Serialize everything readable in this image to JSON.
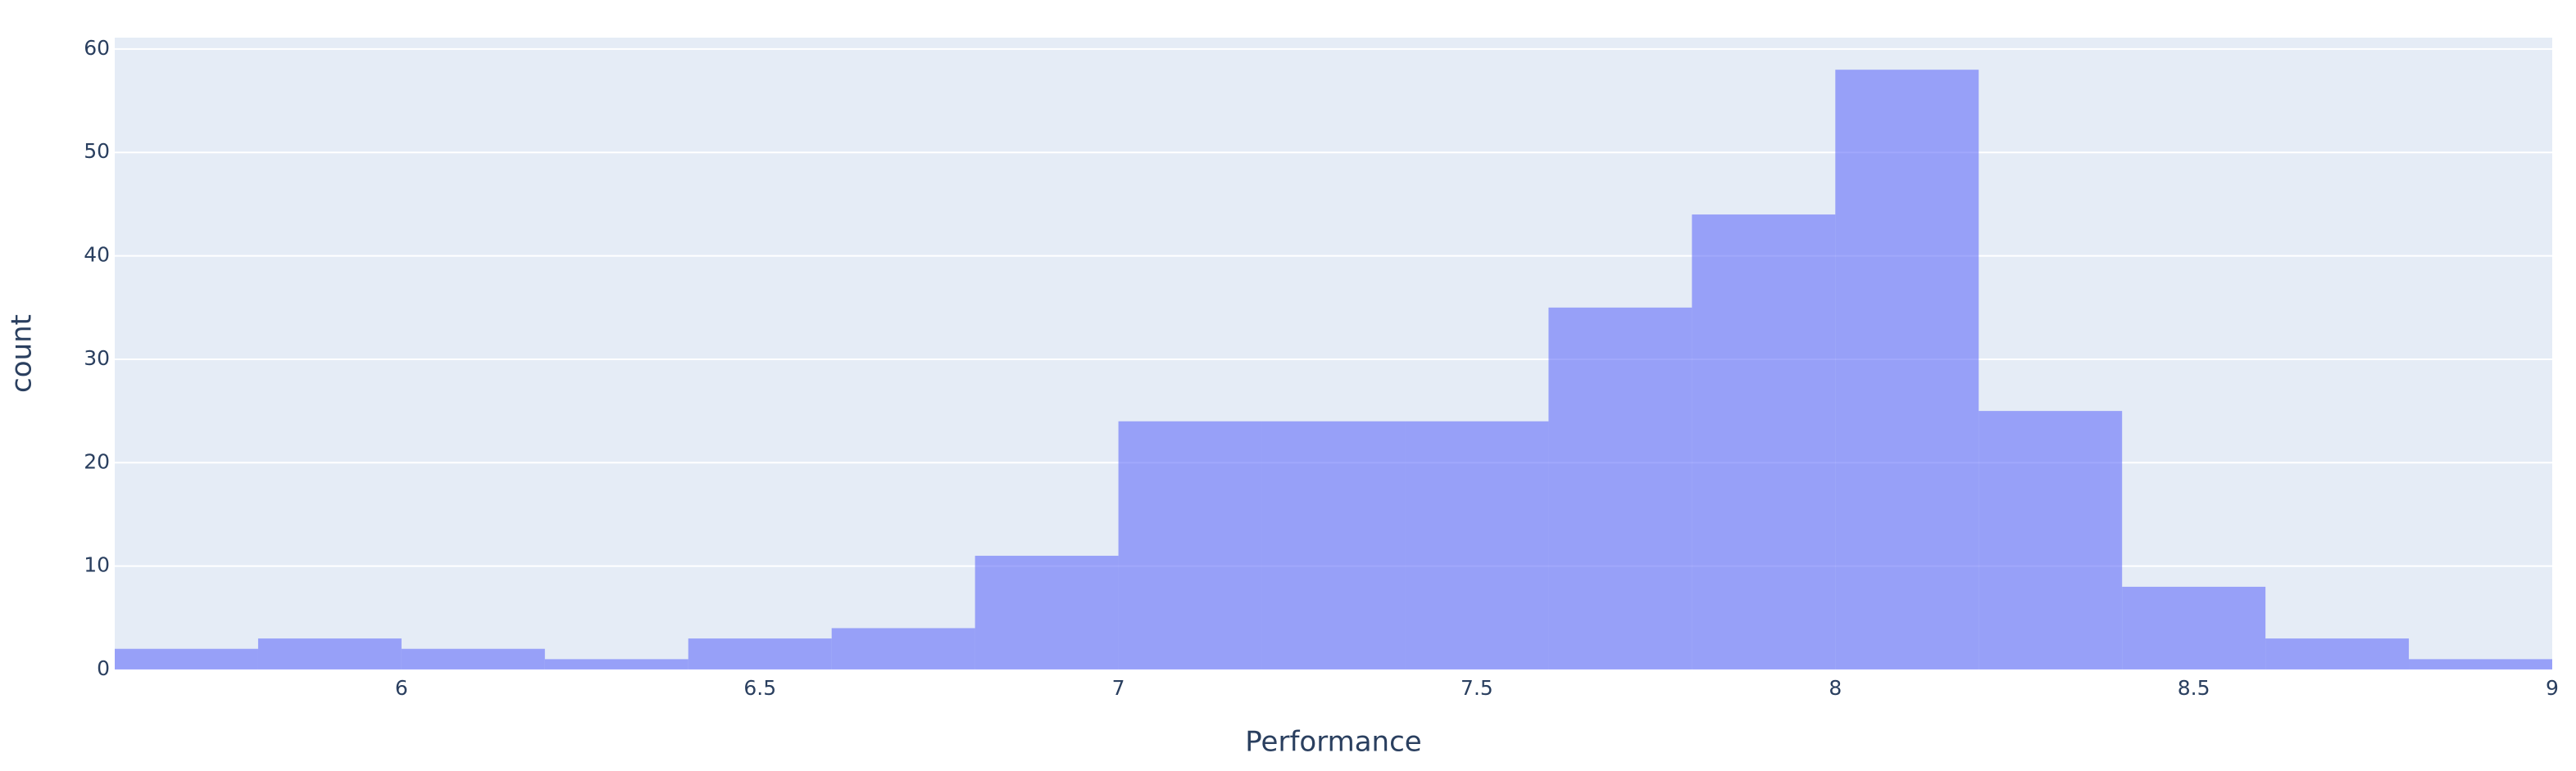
{
  "chart_data": {
    "type": "histogram",
    "x_label": "Performance",
    "y_label": "count",
    "bins": [
      5.6,
      5.8,
      6.0,
      6.2,
      6.4,
      6.6,
      6.8,
      7.0,
      7.2,
      7.4,
      7.6,
      7.8,
      8.0,
      8.2,
      8.4,
      8.6,
      8.8,
      9.0
    ],
    "counts": [
      2,
      3,
      2,
      1,
      3,
      4,
      11,
      24,
      24,
      24,
      35,
      44,
      58,
      25,
      8,
      3,
      1
    ],
    "color": "#636efa",
    "opacity": 0.6,
    "xlim": [
      5.6,
      9
    ],
    "xticks": [
      6,
      6.5,
      7,
      7.5,
      8,
      8.5,
      9
    ],
    "ylim": [
      0,
      61.1
    ],
    "yticks": [
      0,
      10,
      20,
      30,
      40,
      50,
      60
    ],
    "grid": true
  }
}
